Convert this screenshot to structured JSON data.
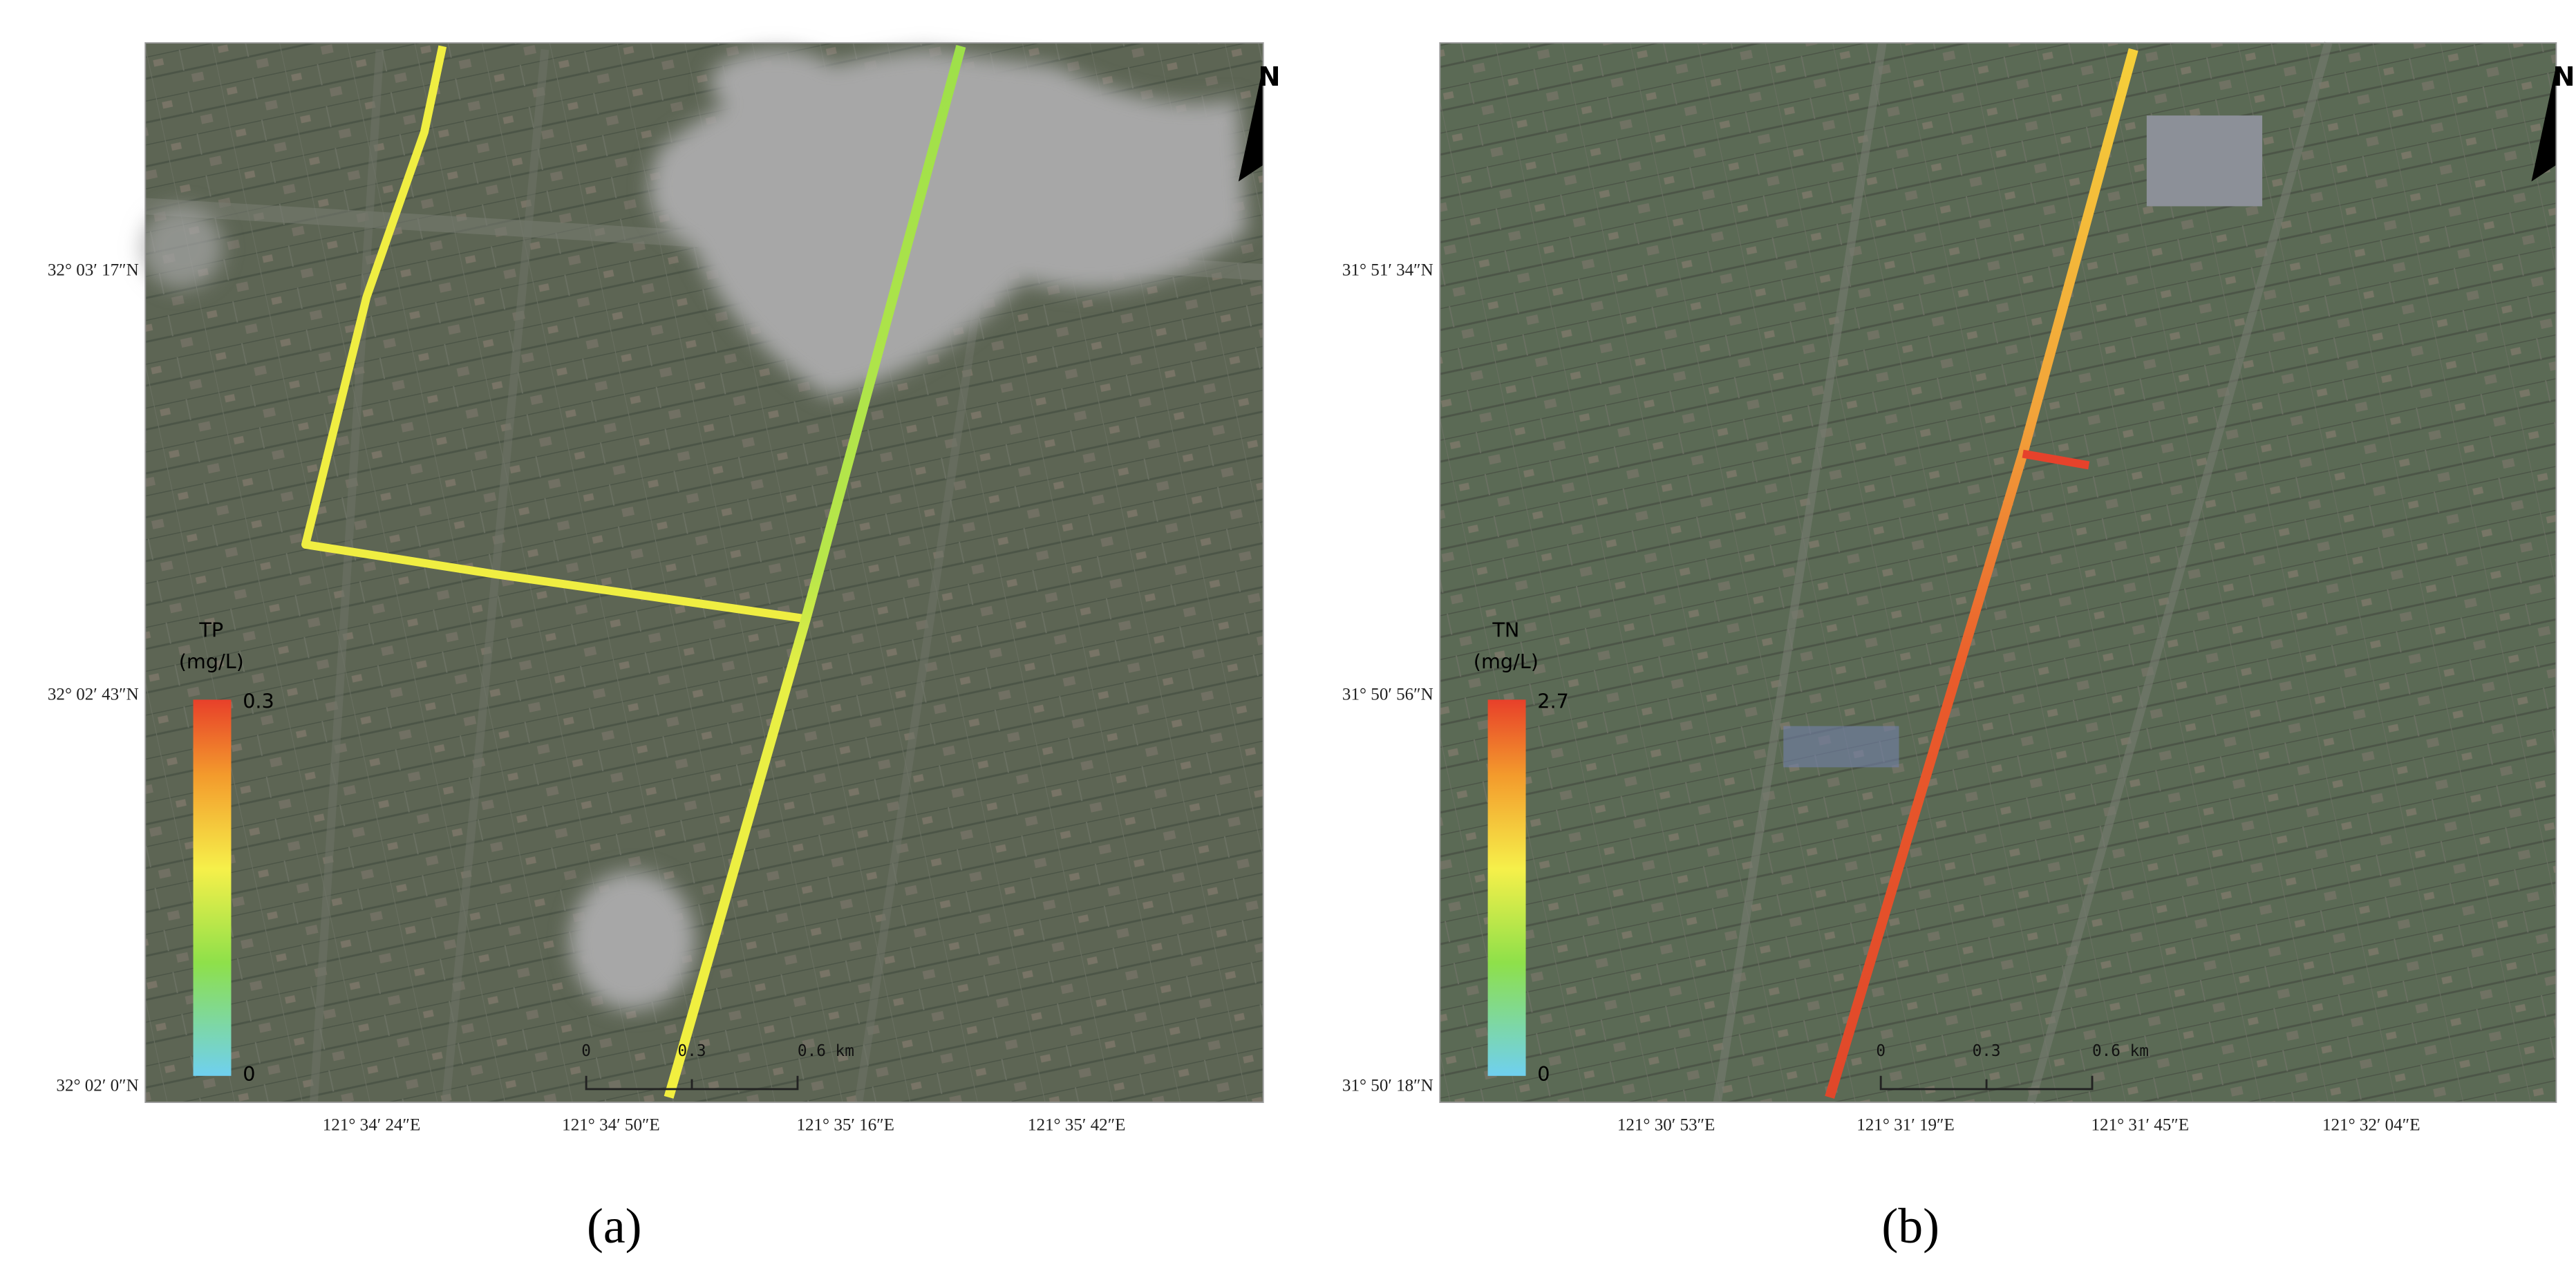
{
  "panels": [
    {
      "label": "(a)",
      "legend_title": "TP",
      "legend_unit": "(mg/L)",
      "legend_max": 0.3,
      "legend_min": 0,
      "lat_labels": [
        "32° 03′ 17″N",
        "32° 02′ 43″N",
        "32° 02′ 0″N"
      ],
      "lon_labels": [
        "121° 34′ 24″E",
        "121° 34′ 50″E",
        "121° 35′ 16″E",
        "121° 35′ 42″E"
      ],
      "scale_labels": [
        "0",
        "0.3",
        "0.6 km"
      ],
      "north": "N"
    },
    {
      "label": "(b)",
      "legend_title": "TN",
      "legend_unit": "(mg/L)",
      "legend_max": 2.7,
      "legend_min": 0,
      "lat_labels": [
        "31° 51′ 34″N",
        "31° 50′ 56″N",
        "31° 50′ 18″N"
      ],
      "lon_labels": [
        "121° 30′ 53″E",
        "121° 31′ 19″E",
        "121° 31′ 45″E",
        "121° 32′ 04″E"
      ],
      "scale_labels": [
        "0",
        "0.3",
        "0.6 km"
      ],
      "north": "N"
    }
  ]
}
